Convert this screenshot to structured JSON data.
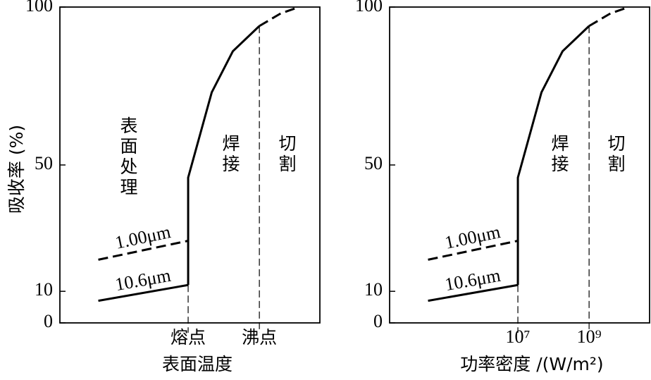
{
  "chart_data": [
    {
      "type": "line",
      "ylabel": "吸收率 (%)",
      "xlabel": "表面温度",
      "xscale": "log",
      "xlim": [
        2500,
        50000000000
      ],
      "ylim": [
        0,
        100
      ],
      "yticks": [
        0,
        10,
        50,
        100
      ],
      "xticks": [
        {
          "value": 10000000,
          "label": "熔点"
        },
        {
          "value": 1000000000,
          "label": "沸点"
        }
      ],
      "annotations": [
        "表面处理",
        "焊接",
        "切割"
      ],
      "series": [
        {
          "name": "10.6μm",
          "color": "#000",
          "dashed": false,
          "x": [
            30000,
            10000000
          ],
          "values": [
            7,
            12
          ]
        },
        {
          "name": "1.00μm",
          "color": "#000",
          "dashed": true,
          "x": [
            30000,
            10000000
          ],
          "values": [
            20,
            26
          ]
        },
        {
          "color": "#000",
          "dashed": false,
          "x": [
            10000000,
            10000000,
            46000000,
            180000000,
            1000000000
          ],
          "values": [
            12,
            46,
            73,
            86,
            94
          ]
        },
        {
          "color": "#000",
          "dashed": true,
          "x": [
            1000000000,
            4000000000,
            13000000000
          ],
          "values": [
            94,
            98,
            100
          ]
        }
      ]
    },
    {
      "type": "line",
      "xlabel": "功率密度 /(W/m²)",
      "xscale": "log",
      "xlim": [
        2500,
        50000000000
      ],
      "ylim": [
        0,
        100
      ],
      "yticks": [
        0,
        10,
        50,
        100
      ],
      "xticks": [
        {
          "value": 10000000,
          "label": "10⁷"
        },
        {
          "value": 1000000000,
          "label": "10⁹"
        }
      ],
      "annotations": [
        "焊接",
        "切割"
      ],
      "series": [
        {
          "name": "10.6μm",
          "color": "#000",
          "dashed": false,
          "x": [
            30000,
            10000000
          ],
          "values": [
            7,
            12
          ]
        },
        {
          "name": "1.00μm",
          "color": "#000",
          "dashed": true,
          "x": [
            30000,
            10000000
          ],
          "values": [
            20,
            26
          ]
        },
        {
          "color": "#000",
          "dashed": false,
          "x": [
            10000000,
            10000000,
            46000000,
            180000000,
            1000000000
          ],
          "values": [
            12,
            46,
            73,
            86,
            94
          ]
        },
        {
          "color": "#000",
          "dashed": true,
          "x": [
            1000000000,
            4000000000,
            13000000000
          ],
          "values": [
            94,
            98,
            100
          ]
        }
      ]
    }
  ]
}
